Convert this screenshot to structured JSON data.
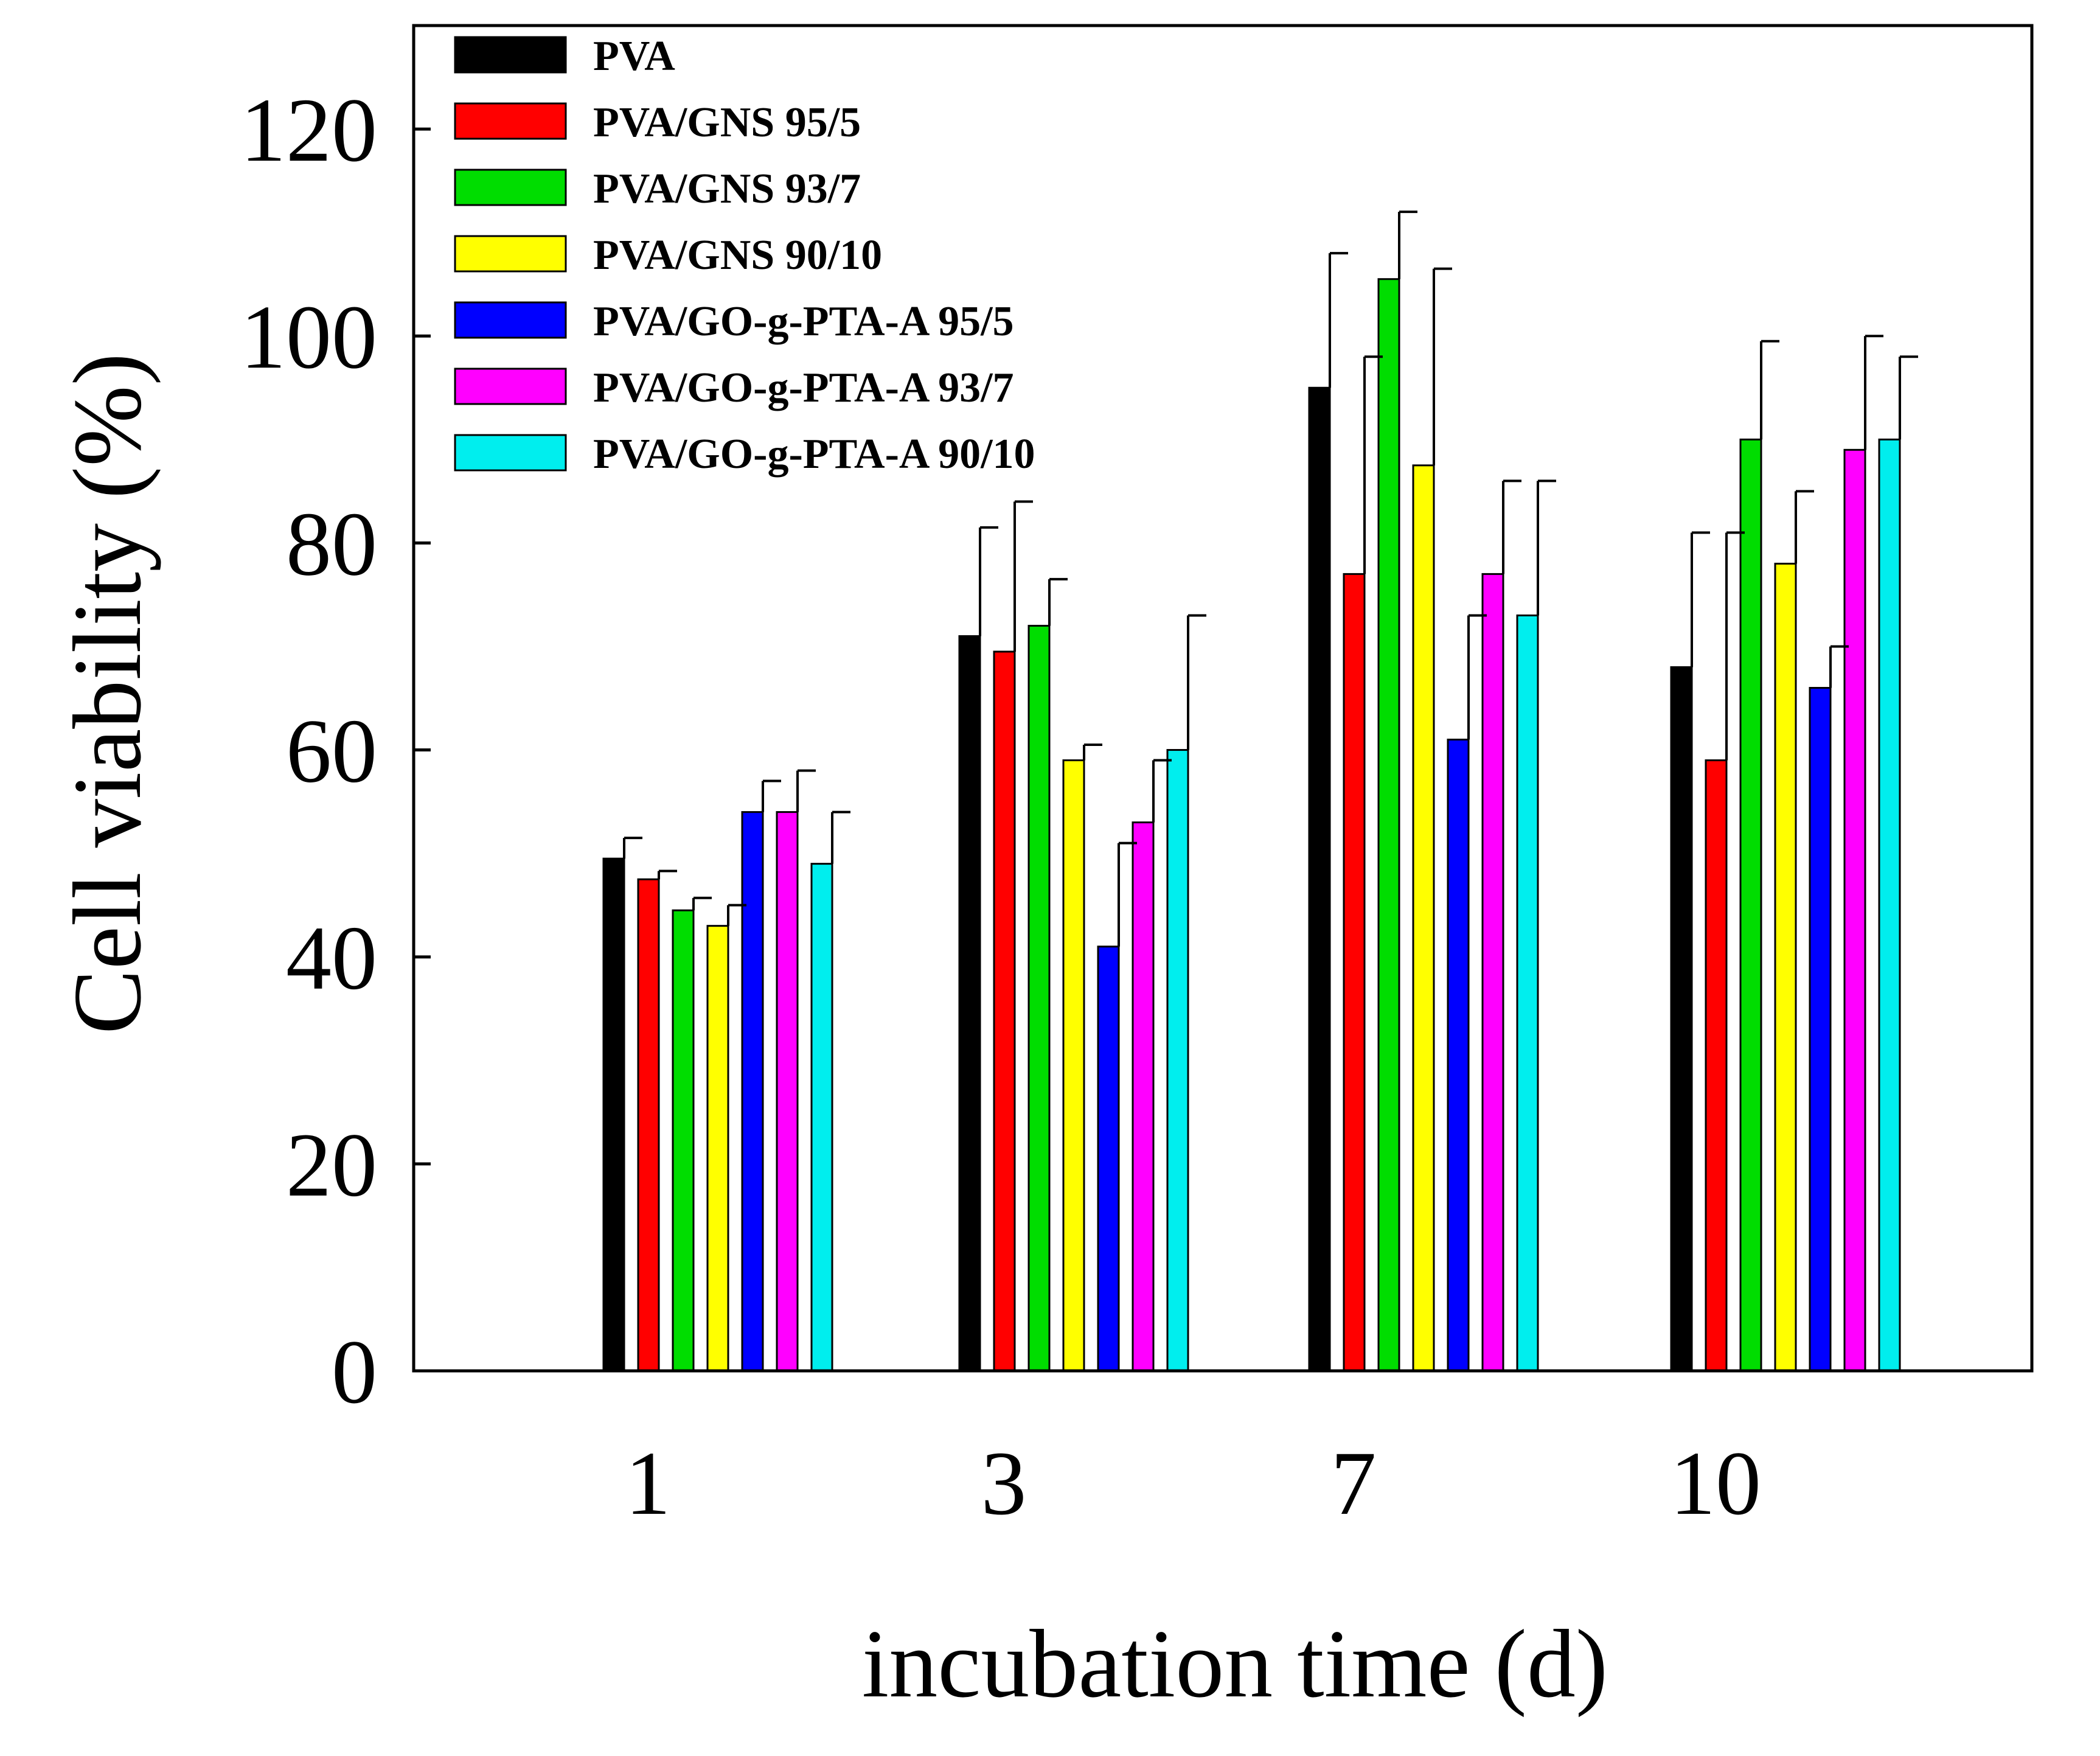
{
  "chart_data": {
    "type": "bar",
    "title": "",
    "xlabel": "incubation time (d)",
    "ylabel": "Cell viability (%)",
    "categories": [
      "1",
      "3",
      "7",
      "10"
    ],
    "ylim": [
      0,
      130
    ],
    "yticks": [
      0,
      20,
      40,
      60,
      80,
      100,
      120
    ],
    "legend_position": "top-left",
    "grid": false,
    "series": [
      {
        "name": "PVA",
        "color": "#000000",
        "values": [
          49.5,
          71,
          95,
          68
        ],
        "errors": [
          2.0,
          10.5,
          13,
          13
        ]
      },
      {
        "name": "PVA/GNS 95/5",
        "color": "#ff0000",
        "values": [
          47.5,
          69.5,
          77,
          59
        ],
        "errors": [
          0.8,
          14.5,
          21,
          22
        ]
      },
      {
        "name": "PVA/GNS 93/7",
        "color": "#00dd00",
        "values": [
          44.5,
          72,
          105.5,
          90
        ],
        "errors": [
          1.2,
          4.5,
          6.5,
          9.5
        ]
      },
      {
        "name": "PVA/GNS 90/10",
        "color": "#ffff00",
        "values": [
          43,
          59,
          87.5,
          78
        ],
        "errors": [
          2.0,
          1.5,
          19,
          7
        ]
      },
      {
        "name": "PVA/GO-g-PTA-A 95/5",
        "color": "#0000ff",
        "values": [
          54,
          41,
          61,
          66
        ],
        "errors": [
          3.0,
          10,
          12,
          4
        ]
      },
      {
        "name": "PVA/GO-g-PTA-A 93/7",
        "color": "#ff00ff",
        "values": [
          54,
          53,
          77,
          89
        ],
        "errors": [
          4.0,
          6,
          9,
          11
        ]
      },
      {
        "name": "PVA/GO-g-PTA-A 90/10",
        "color": "#00eeee",
        "values": [
          49,
          60,
          73,
          90
        ],
        "errors": [
          5.0,
          13,
          13,
          8
        ]
      }
    ]
  }
}
